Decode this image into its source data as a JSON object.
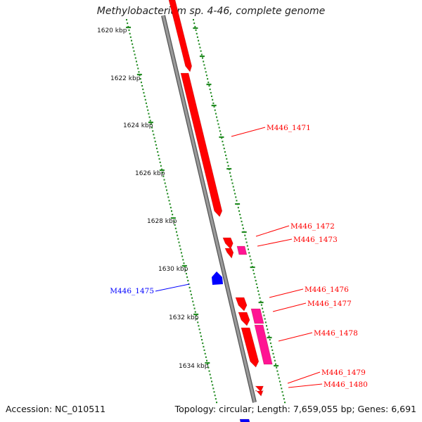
{
  "title": "Methylobacterium sp. 4-46, complete genome",
  "footer": {
    "accession": "Accession: NC_010511",
    "summary": "Topology: circular; Length: 7,659,055 bp; Genes: 6,691"
  },
  "colors": {
    "forward_gene": "#ff0000",
    "forward_pair": "#ff1493",
    "reverse_gene": "#0000ff",
    "backbone": "#888888",
    "ticks": "#228b22"
  },
  "scale": [
    {
      "label": "1620 kbp"
    },
    {
      "label": "1622 kbp"
    },
    {
      "label": "1624 kbp"
    },
    {
      "label": "1626 kbp"
    },
    {
      "label": "1628 kbp"
    },
    {
      "label": "1630 kbp"
    },
    {
      "label": "1632 kbp"
    },
    {
      "label": "1634 kbp"
    }
  ],
  "gene_labels": [
    {
      "text": "M446_1471",
      "strand": "forward"
    },
    {
      "text": "M446_1472",
      "strand": "forward"
    },
    {
      "text": "M446_1473",
      "strand": "forward"
    },
    {
      "text": "M446_1475",
      "strand": "reverse"
    },
    {
      "text": "M446_1476",
      "strand": "forward"
    },
    {
      "text": "M446_1477",
      "strand": "forward"
    },
    {
      "text": "M446_1478",
      "strand": "forward"
    },
    {
      "text": "M446_1479",
      "strand": "forward"
    },
    {
      "text": "M446_1480",
      "strand": "forward"
    }
  ]
}
